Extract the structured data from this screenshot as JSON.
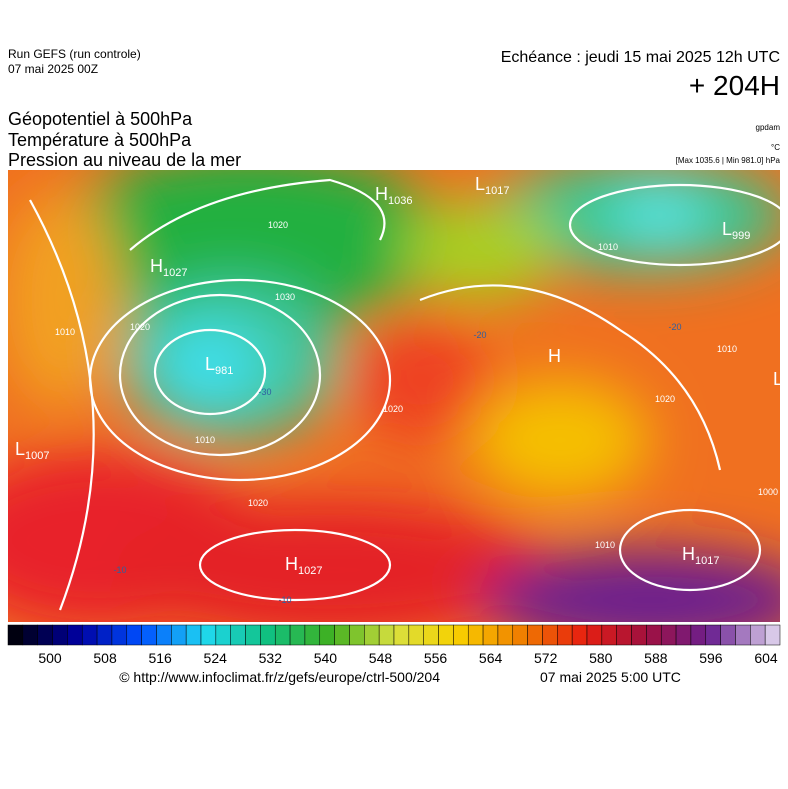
{
  "header": {
    "run": "Run GEFS (run controle)",
    "run_date": "07 mai 2025 00Z",
    "echeance": "Echéance : jeudi 15 mai 2025 12h UTC",
    "lead": "+ 204H"
  },
  "titles": [
    "Géopotentiel à 500hPa",
    "Température à 500hPa",
    "Pression au niveau de la mer"
  ],
  "units": [
    "gpdam",
    "°C",
    "[Max 1035.6 | Min 981.0] hPa"
  ],
  "centers": [
    {
      "symbol": "H",
      "value": 1036
    },
    {
      "symbol": "L",
      "value": 1017
    },
    {
      "symbol": "L",
      "value": 999
    },
    {
      "symbol": "H",
      "value": 1027
    },
    {
      "symbol": "L",
      "value": 981
    },
    {
      "symbol": "L",
      "value": 1007
    },
    {
      "symbol": "H",
      "value": 1027
    },
    {
      "symbol": "H"
    },
    {
      "symbol": "H",
      "value": 1017
    },
    {
      "symbol": "L"
    }
  ],
  "contour_labels": [
    1020,
    1020,
    1010,
    1010,
    1020,
    1020,
    1010,
    1010,
    1020,
    1010,
    1000,
    -30,
    -20,
    -20,
    -10,
    -10,
    1030
  ],
  "colorbar": {
    "ticks": [
      500,
      508,
      516,
      524,
      532,
      540,
      548,
      556,
      564,
      572,
      580,
      588,
      596,
      604
    ]
  },
  "footer": {
    "source": "© http://www.infoclimat.fr/z/gefs/europe/ctrl-500/204",
    "timestamp": "07 mai 2025  5:00 UTC"
  }
}
